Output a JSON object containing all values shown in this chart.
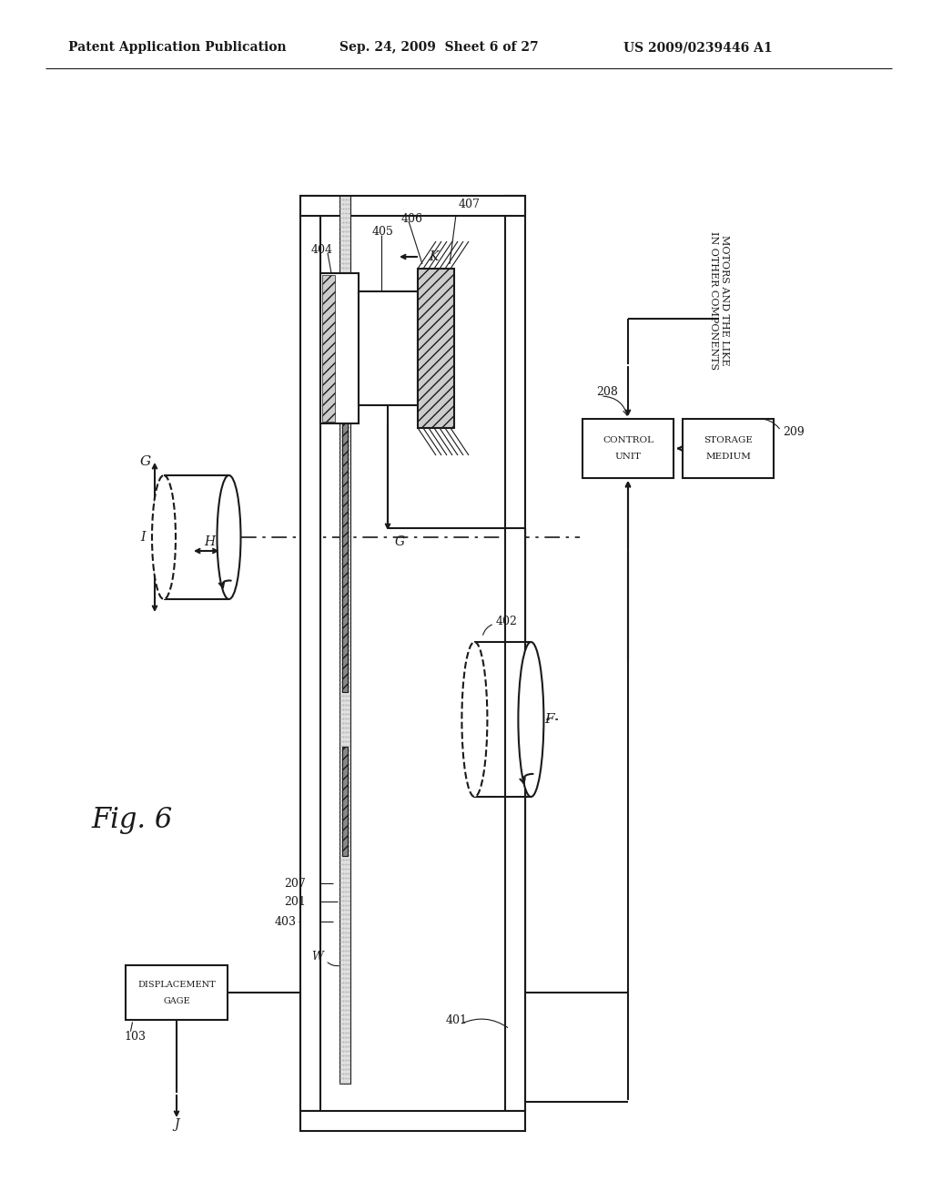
{
  "header_left": "Patent Application Publication",
  "header_mid": "Sep. 24, 2009  Sheet 6 of 27",
  "header_right": "US 2009/0239446 A1",
  "fig_label": "Fig. 6",
  "bg": "#ffffff",
  "lc": "#1a1a1a",
  "lw": 1.5
}
